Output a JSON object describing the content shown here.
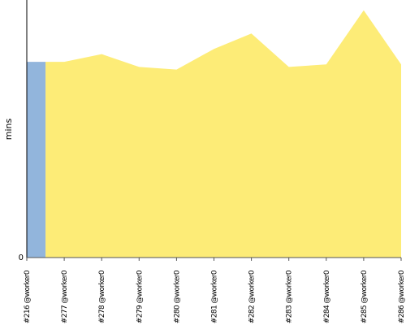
{
  "chart_data": {
    "type": "area",
    "title": "",
    "xlabel": "",
    "ylabel": "mins",
    "categories": [
      "#216 @worker0",
      "#277 @worker0",
      "#278 @worker0",
      "#279 @worker0",
      "#280 @worker0",
      "#281 @worker0",
      "#282 @worker0",
      "#283 @worker0",
      "#284 @worker0",
      "#285 @worker0",
      "#286 @worker0"
    ],
    "series": [
      {
        "values": [
          76,
          76,
          79,
          74,
          73,
          81,
          87,
          74,
          75,
          96,
          75
        ]
      }
    ],
    "highlight": {
      "index": 0,
      "color": "#92b5dc"
    },
    "area_color": "#fdec77",
    "ylim": [
      0,
      100
    ],
    "y_ticks": [
      {
        "value": 0,
        "label": "0"
      }
    ],
    "grid": false,
    "legend": "none"
  }
}
